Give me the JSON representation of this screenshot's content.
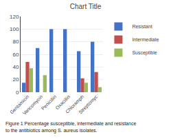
{
  "chart_data": {
    "type": "bar",
    "title": "Chart Title",
    "categories": [
      "Gentamicin",
      "Vancomycin",
      "Penicillin",
      "Oxacillin",
      "Chloramph",
      "Streptomyc"
    ],
    "series": [
      {
        "name": "Resistant",
        "color": "#4472C4",
        "values": [
          15,
          70,
          100,
          100,
          65,
          80
        ]
      },
      {
        "name": "Intermediate",
        "color": "#C0504D",
        "values": [
          48,
          0,
          0,
          0,
          22,
          32
        ]
      },
      {
        "name": "Susceptible",
        "color": "#9BBB59",
        "values": [
          38,
          27,
          0,
          0,
          15,
          8
        ]
      }
    ],
    "ylim": [
      0,
      120
    ],
    "yticks": [
      0,
      20,
      40,
      60,
      80,
      100,
      120
    ],
    "grid": true,
    "legend": "right",
    "annotations": [
      "Figure 1 Percentage susceptible, intermediate and resistance",
      "to the antibiotics among S. aureus isolates."
    ]
  }
}
